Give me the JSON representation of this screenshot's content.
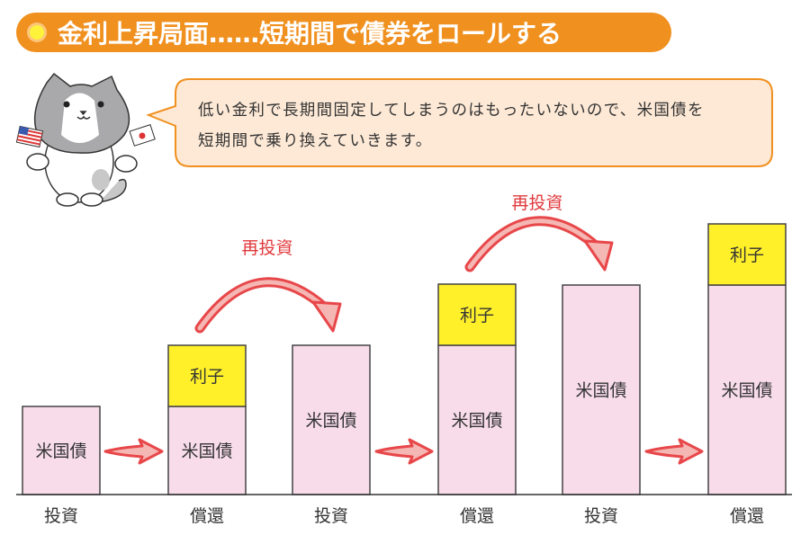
{
  "header": {
    "title": "金利上昇局面……短期間で債券をロールする"
  },
  "speech": {
    "line1": "低い金利で長期間固定してしまうのはもったいないので、米国債を",
    "line2": "短期間で乗り換えていきます。"
  },
  "diagram": {
    "bond_label": "米国債",
    "interest_label": "利子",
    "reinvest_label": "再投資",
    "columns": [
      {
        "label": "投資",
        "bond": 1,
        "interest": 0
      },
      {
        "label": "償還",
        "bond": 1,
        "interest": 1
      },
      {
        "label": "投資",
        "bond": 2,
        "interest": 0
      },
      {
        "label": "償還",
        "bond": 2,
        "interest": 1
      },
      {
        "label": "投資",
        "bond": 3,
        "interest": 0
      },
      {
        "label": "償還",
        "bond": 3,
        "interest": 1
      }
    ]
  },
  "colors": {
    "header": "#f0901f",
    "bond": "#f8dcea",
    "interest": "#fff02a",
    "arrow": "#e8474a",
    "bubble": "#fde9d6"
  }
}
